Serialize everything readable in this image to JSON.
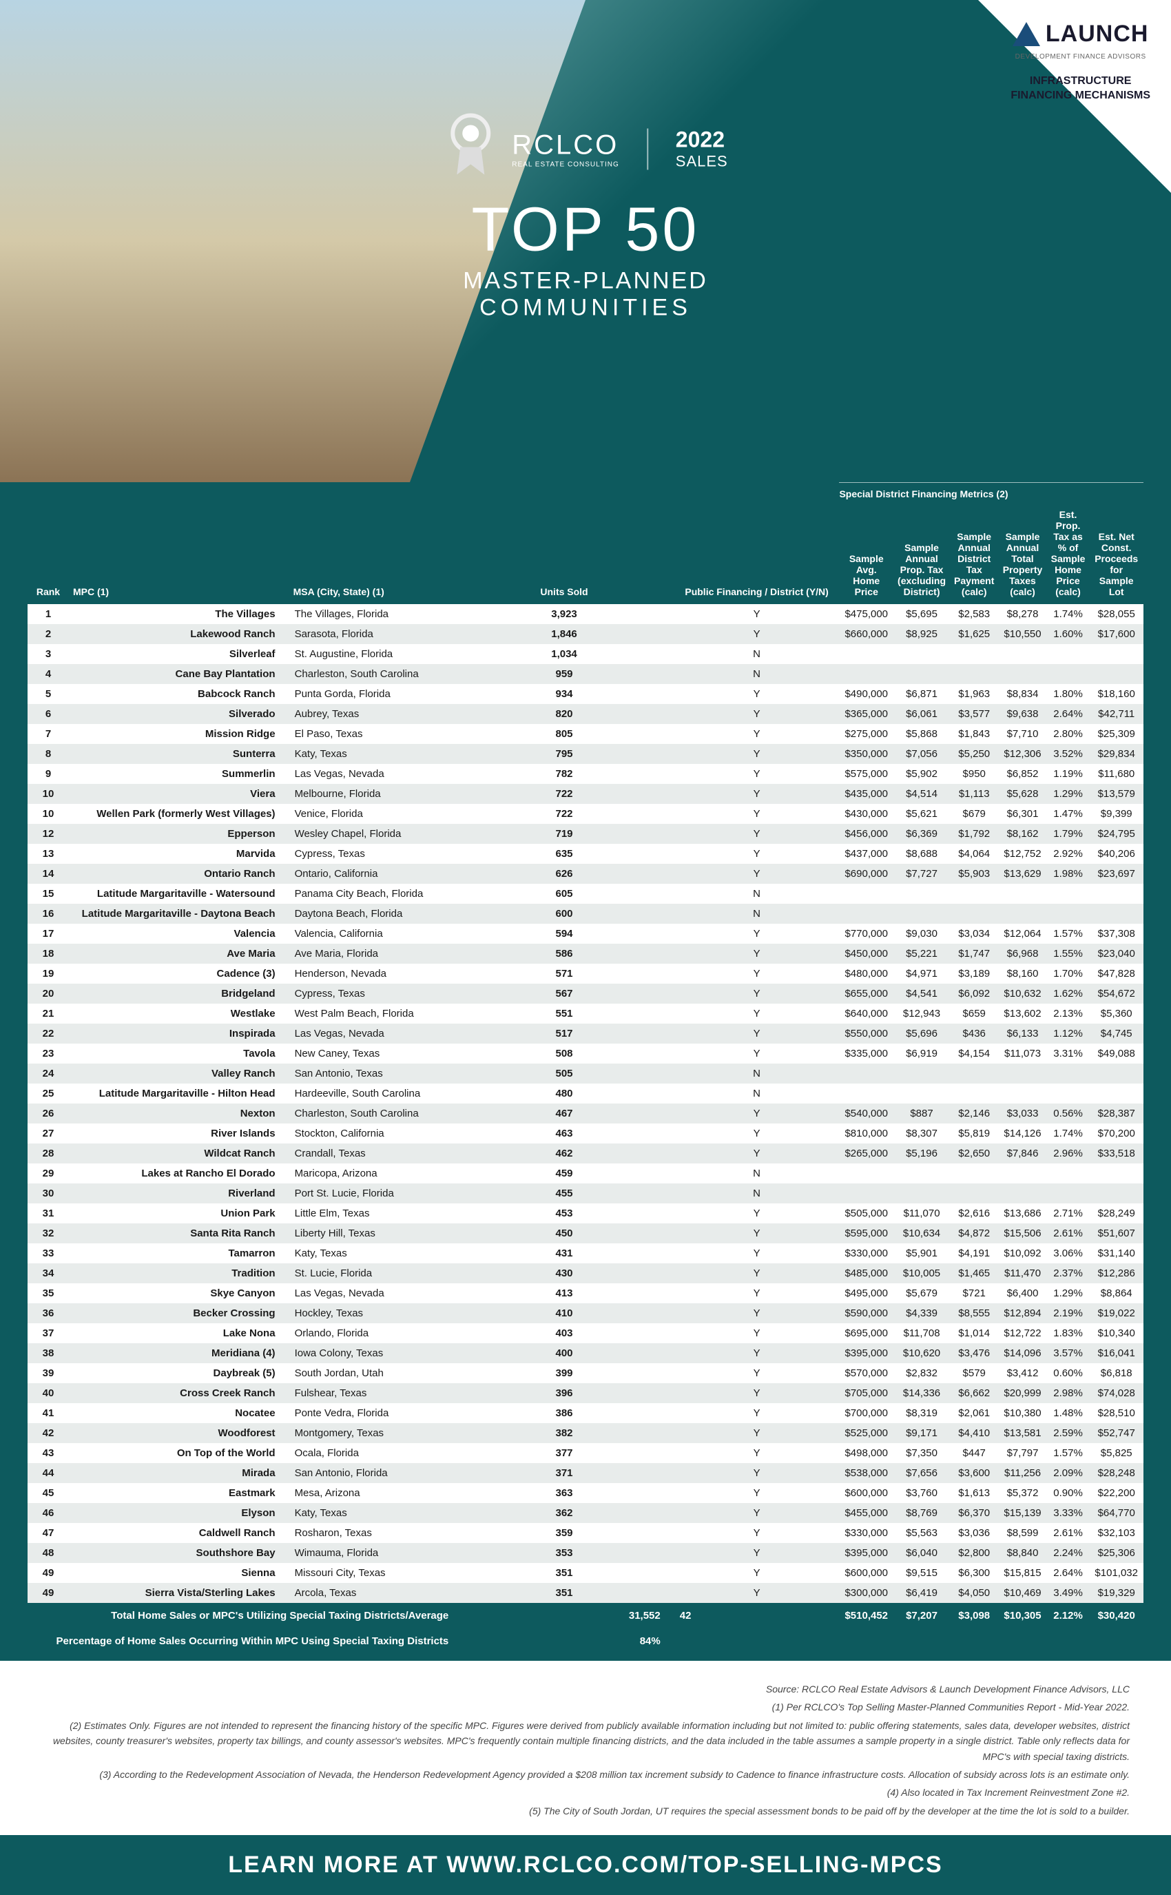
{
  "brand": {
    "launch": "LAUNCH",
    "launch_sub": "DEVELOPMENT FINANCE ADVISORS",
    "infra": "INFRASTRUCTURE\nFINANCING MECHANISMS"
  },
  "hero": {
    "rclco": "RCLCO",
    "rclco_sub": "REAL ESTATE CONSULTING",
    "year": "2022",
    "sales": "SALES",
    "top50": "TOP 50",
    "mpc": "MASTER-PLANNED",
    "communities": "COMMUNITIES"
  },
  "table": {
    "metrics_header": "Special District Financing Metrics (2)",
    "columns": [
      "Rank",
      "MPC (1)",
      "MSA (City, State) (1)",
      "Units Sold",
      "Public Financing / District (Y/N)",
      "Sample Avg. Home Price",
      "Sample Annual Prop. Tax (excluding District)",
      "Sample Annual District Tax Payment (calc)",
      "Sample Annual Total Property Taxes (calc)",
      "Est. Prop. Tax as % of Sample Home Price (calc)",
      "Est. Net Const. Proceeds for Sample Lot"
    ],
    "rows": [
      [
        "1",
        "The Villages",
        "The Villages, Florida",
        "3,923",
        "Y",
        "$475,000",
        "$5,695",
        "$2,583",
        "$8,278",
        "1.74%",
        "$28,055"
      ],
      [
        "2",
        "Lakewood Ranch",
        "Sarasota, Florida",
        "1,846",
        "Y",
        "$660,000",
        "$8,925",
        "$1,625",
        "$10,550",
        "1.60%",
        "$17,600"
      ],
      [
        "3",
        "Silverleaf",
        "St. Augustine, Florida",
        "1,034",
        "N",
        "",
        "",
        "",
        "",
        "",
        ""
      ],
      [
        "4",
        "Cane Bay Plantation",
        "Charleston, South Carolina",
        "959",
        "N",
        "",
        "",
        "",
        "",
        "",
        ""
      ],
      [
        "5",
        "Babcock Ranch",
        "Punta Gorda, Florida",
        "934",
        "Y",
        "$490,000",
        "$6,871",
        "$1,963",
        "$8,834",
        "1.80%",
        "$18,160"
      ],
      [
        "6",
        "Silverado",
        "Aubrey, Texas",
        "820",
        "Y",
        "$365,000",
        "$6,061",
        "$3,577",
        "$9,638",
        "2.64%",
        "$42,711"
      ],
      [
        "7",
        "Mission Ridge",
        "El Paso, Texas",
        "805",
        "Y",
        "$275,000",
        "$5,868",
        "$1,843",
        "$7,710",
        "2.80%",
        "$25,309"
      ],
      [
        "8",
        "Sunterra",
        "Katy, Texas",
        "795",
        "Y",
        "$350,000",
        "$7,056",
        "$5,250",
        "$12,306",
        "3.52%",
        "$29,834"
      ],
      [
        "9",
        "Summerlin",
        "Las Vegas, Nevada",
        "782",
        "Y",
        "$575,000",
        "$5,902",
        "$950",
        "$6,852",
        "1.19%",
        "$11,680"
      ],
      [
        "10",
        "Viera",
        "Melbourne, Florida",
        "722",
        "Y",
        "$435,000",
        "$4,514",
        "$1,113",
        "$5,628",
        "1.29%",
        "$13,579"
      ],
      [
        "10",
        "Wellen Park (formerly West Villages)",
        "Venice, Florida",
        "722",
        "Y",
        "$430,000",
        "$5,621",
        "$679",
        "$6,301",
        "1.47%",
        "$9,399"
      ],
      [
        "12",
        "Epperson",
        "Wesley Chapel, Florida",
        "719",
        "Y",
        "$456,000",
        "$6,369",
        "$1,792",
        "$8,162",
        "1.79%",
        "$24,795"
      ],
      [
        "13",
        "Marvida",
        "Cypress, Texas",
        "635",
        "Y",
        "$437,000",
        "$8,688",
        "$4,064",
        "$12,752",
        "2.92%",
        "$40,206"
      ],
      [
        "14",
        "Ontario Ranch",
        "Ontario, California",
        "626",
        "Y",
        "$690,000",
        "$7,727",
        "$5,903",
        "$13,629",
        "1.98%",
        "$23,697"
      ],
      [
        "15",
        "Latitude Margaritaville - Watersound",
        "Panama City Beach, Florida",
        "605",
        "N",
        "",
        "",
        "",
        "",
        "",
        ""
      ],
      [
        "16",
        "Latitude Margaritaville - Daytona Beach",
        "Daytona Beach, Florida",
        "600",
        "N",
        "",
        "",
        "",
        "",
        "",
        ""
      ],
      [
        "17",
        "Valencia",
        "Valencia, California",
        "594",
        "Y",
        "$770,000",
        "$9,030",
        "$3,034",
        "$12,064",
        "1.57%",
        "$37,308"
      ],
      [
        "18",
        "Ave Maria",
        "Ave Maria, Florida",
        "586",
        "Y",
        "$450,000",
        "$5,221",
        "$1,747",
        "$6,968",
        "1.55%",
        "$23,040"
      ],
      [
        "19",
        "Cadence (3)",
        "Henderson, Nevada",
        "571",
        "Y",
        "$480,000",
        "$4,971",
        "$3,189",
        "$8,160",
        "1.70%",
        "$47,828"
      ],
      [
        "20",
        "Bridgeland",
        "Cypress, Texas",
        "567",
        "Y",
        "$655,000",
        "$4,541",
        "$6,092",
        "$10,632",
        "1.62%",
        "$54,672"
      ],
      [
        "21",
        "Westlake",
        "West Palm Beach, Florida",
        "551",
        "Y",
        "$640,000",
        "$12,943",
        "$659",
        "$13,602",
        "2.13%",
        "$5,360"
      ],
      [
        "22",
        "Inspirada",
        "Las Vegas, Nevada",
        "517",
        "Y",
        "$550,000",
        "$5,696",
        "$436",
        "$6,133",
        "1.12%",
        "$4,745"
      ],
      [
        "23",
        "Tavola",
        "New Caney, Texas",
        "508",
        "Y",
        "$335,000",
        "$6,919",
        "$4,154",
        "$11,073",
        "3.31%",
        "$49,088"
      ],
      [
        "24",
        "Valley Ranch",
        "San Antonio, Texas",
        "505",
        "N",
        "",
        "",
        "",
        "",
        "",
        ""
      ],
      [
        "25",
        "Latitude Margaritaville - Hilton Head",
        "Hardeeville, South Carolina",
        "480",
        "N",
        "",
        "",
        "",
        "",
        "",
        ""
      ],
      [
        "26",
        "Nexton",
        "Charleston, South Carolina",
        "467",
        "Y",
        "$540,000",
        "$887",
        "$2,146",
        "$3,033",
        "0.56%",
        "$28,387"
      ],
      [
        "27",
        "River Islands",
        "Stockton, California",
        "463",
        "Y",
        "$810,000",
        "$8,307",
        "$5,819",
        "$14,126",
        "1.74%",
        "$70,200"
      ],
      [
        "28",
        "Wildcat Ranch",
        "Crandall, Texas",
        "462",
        "Y",
        "$265,000",
        "$5,196",
        "$2,650",
        "$7,846",
        "2.96%",
        "$33,518"
      ],
      [
        "29",
        "Lakes at Rancho El Dorado",
        "Maricopa, Arizona",
        "459",
        "N",
        "",
        "",
        "",
        "",
        "",
        ""
      ],
      [
        "30",
        "Riverland",
        "Port St. Lucie, Florida",
        "455",
        "N",
        "",
        "",
        "",
        "",
        "",
        ""
      ],
      [
        "31",
        "Union Park",
        "Little Elm, Texas",
        "453",
        "Y",
        "$505,000",
        "$11,070",
        "$2,616",
        "$13,686",
        "2.71%",
        "$28,249"
      ],
      [
        "32",
        "Santa Rita Ranch",
        "Liberty Hill, Texas",
        "450",
        "Y",
        "$595,000",
        "$10,634",
        "$4,872",
        "$15,506",
        "2.61%",
        "$51,607"
      ],
      [
        "33",
        "Tamarron",
        "Katy, Texas",
        "431",
        "Y",
        "$330,000",
        "$5,901",
        "$4,191",
        "$10,092",
        "3.06%",
        "$31,140"
      ],
      [
        "34",
        "Tradition",
        "St. Lucie, Florida",
        "430",
        "Y",
        "$485,000",
        "$10,005",
        "$1,465",
        "$11,470",
        "2.37%",
        "$12,286"
      ],
      [
        "35",
        "Skye Canyon",
        "Las Vegas, Nevada",
        "413",
        "Y",
        "$495,000",
        "$5,679",
        "$721",
        "$6,400",
        "1.29%",
        "$8,864"
      ],
      [
        "36",
        "Becker Crossing",
        "Hockley, Texas",
        "410",
        "Y",
        "$590,000",
        "$4,339",
        "$8,555",
        "$12,894",
        "2.19%",
        "$19,022"
      ],
      [
        "37",
        "Lake Nona",
        "Orlando, Florida",
        "403",
        "Y",
        "$695,000",
        "$11,708",
        "$1,014",
        "$12,722",
        "1.83%",
        "$10,340"
      ],
      [
        "38",
        "Meridiana (4)",
        "Iowa Colony, Texas",
        "400",
        "Y",
        "$395,000",
        "$10,620",
        "$3,476",
        "$14,096",
        "3.57%",
        "$16,041"
      ],
      [
        "39",
        "Daybreak (5)",
        "South Jordan, Utah",
        "399",
        "Y",
        "$570,000",
        "$2,832",
        "$579",
        "$3,412",
        "0.60%",
        "$6,818"
      ],
      [
        "40",
        "Cross Creek Ranch",
        "Fulshear, Texas",
        "396",
        "Y",
        "$705,000",
        "$14,336",
        "$6,662",
        "$20,999",
        "2.98%",
        "$74,028"
      ],
      [
        "41",
        "Nocatee",
        "Ponte Vedra, Florida",
        "386",
        "Y",
        "$700,000",
        "$8,319",
        "$2,061",
        "$10,380",
        "1.48%",
        "$28,510"
      ],
      [
        "42",
        "Woodforest",
        "Montgomery, Texas",
        "382",
        "Y",
        "$525,000",
        "$9,171",
        "$4,410",
        "$13,581",
        "2.59%",
        "$52,747"
      ],
      [
        "43",
        "On Top of the World",
        "Ocala, Florida",
        "377",
        "Y",
        "$498,000",
        "$7,350",
        "$447",
        "$7,797",
        "1.57%",
        "$5,825"
      ],
      [
        "44",
        "Mirada",
        "San Antonio, Florida",
        "371",
        "Y",
        "$538,000",
        "$7,656",
        "$3,600",
        "$11,256",
        "2.09%",
        "$28,248"
      ],
      [
        "45",
        "Eastmark",
        "Mesa, Arizona",
        "363",
        "Y",
        "$600,000",
        "$3,760",
        "$1,613",
        "$5,372",
        "0.90%",
        "$22,200"
      ],
      [
        "46",
        "Elyson",
        "Katy, Texas",
        "362",
        "Y",
        "$455,000",
        "$8,769",
        "$6,370",
        "$15,139",
        "3.33%",
        "$64,770"
      ],
      [
        "47",
        "Caldwell Ranch",
        "Rosharon, Texas",
        "359",
        "Y",
        "$330,000",
        "$5,563",
        "$3,036",
        "$8,599",
        "2.61%",
        "$32,103"
      ],
      [
        "48",
        "Southshore Bay",
        "Wimauma, Florida",
        "353",
        "Y",
        "$395,000",
        "$6,040",
        "$2,800",
        "$8,840",
        "2.24%",
        "$25,306"
      ],
      [
        "49",
        "Sienna",
        "Missouri City, Texas",
        "351",
        "Y",
        "$600,000",
        "$9,515",
        "$6,300",
        "$15,815",
        "2.64%",
        "$101,032"
      ],
      [
        "49",
        "Sierra Vista/Sterling Lakes",
        "Arcola, Texas",
        "351",
        "Y",
        "$300,000",
        "$6,419",
        "$4,050",
        "$10,469",
        "3.49%",
        "$19,329"
      ]
    ],
    "totals": {
      "label": "Total Home Sales or MPC's Utilizing Special Taxing Districts/Average",
      "units": "31,552",
      "count": "42",
      "avg_price": "$510,452",
      "avg_tax": "$7,207",
      "avg_district": "$3,098",
      "avg_total": "$10,305",
      "avg_pct": "2.12%",
      "avg_proceeds": "$30,420"
    },
    "pct_row": {
      "label": "Percentage of Home Sales Occurring Within MPC Using Special Taxing Districts",
      "value": "84%"
    }
  },
  "footnotes": {
    "source": "Source: RCLCO Real Estate Advisors & Launch Development Finance Advisors, LLC",
    "n1": "(1) Per RCLCO's Top Selling Master-Planned Communities Report - Mid-Year 2022.",
    "n2": "(2) Estimates Only. Figures are not intended to represent the financing history of the specific MPC. Figures were derived from publicly available information including but not limited to: public offering statements, sales data, developer websites, district websites, county treasurer's websites, property tax billings, and county assessor's websites. MPC's frequently contain multiple financing districts, and the data included in the table assumes a sample property in a single district. Table only reflects data for MPC's with special taxing districts.",
    "n3": "(3) According to the Redevelopment Association of Nevada, the Henderson Redevelopment Agency provided a $208 million tax increment subsidy to Cadence to finance infrastructure costs. Allocation of subsidy across lots is an estimate only.",
    "n4": "(4) Also located in Tax Increment Reinvestment Zone #2.",
    "n5": "(5) The City of South Jordan, UT requires the special assessment bonds to be paid off by the developer at the time the lot is sold to a builder."
  },
  "footer": "LEARN MORE AT WWW.RCLCO.COM/TOP-SELLING-MPCS"
}
